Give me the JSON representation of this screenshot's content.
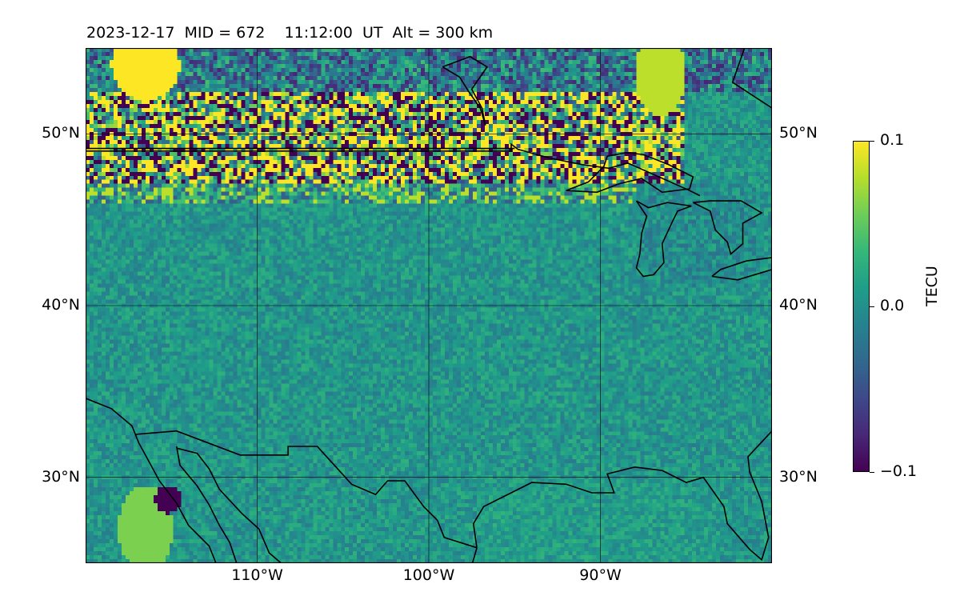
{
  "title": "2023-12-17  MID = 672    11:12:00  UT  Alt = 300 km",
  "map": {
    "lon_range": [
      -120,
      -80
    ],
    "lat_range": [
      25,
      55
    ],
    "lon_ticks": [
      {
        "value": -110,
        "label": "110°W"
      },
      {
        "value": -100,
        "label": "100°W"
      },
      {
        "value": -90,
        "label": "90°W"
      }
    ],
    "lat_ticks": [
      {
        "value": 50,
        "label": "50°N"
      },
      {
        "value": 40,
        "label": "40°N"
      },
      {
        "value": 30,
        "label": "30°N"
      }
    ],
    "gridlines": true,
    "coastlines": true,
    "borders": true
  },
  "colorbar": {
    "label": "TECU",
    "range": [
      -0.1,
      0.1
    ],
    "ticks": [
      {
        "value": 0.1,
        "label": "0.1"
      },
      {
        "value": 0.0,
        "label": "0.0"
      },
      {
        "value": -0.1,
        "label": "−0.1"
      }
    ],
    "colormap": "viridis"
  },
  "chart_data": {
    "type": "heatmap",
    "title": "2023-12-17  MID = 672    11:12:00  UT  Alt = 300 km",
    "x_axis": "longitude",
    "y_axis": "latitude",
    "xlim": [
      -120,
      -80
    ],
    "ylim": [
      25,
      55
    ],
    "value_label": "TECU",
    "value_range": [
      -0.1,
      0.1
    ],
    "regions": [
      {
        "description_lat_range": [
          46,
          52
        ],
        "lon_range": [
          -120,
          -86
        ],
        "character": "strong mixed positive/negative perturbations along the US-Canada border"
      },
      {
        "description_lat_range": [
          25,
          46
        ],
        "lon_range": [
          -120,
          -80
        ],
        "character": "near-zero background, weak positive noise"
      },
      {
        "description_lat_range": [
          52,
          55
        ],
        "lon_range": [
          -118,
          -115
        ],
        "character": "strong positive"
      },
      {
        "description_lat_range": [
          51,
          55
        ],
        "lon_range": [
          -88,
          -85
        ],
        "character": "strong positive"
      },
      {
        "description_lat_range": [
          25,
          30
        ],
        "lon_range": [
          -118,
          -115
        ],
        "character": "positive"
      },
      {
        "description_lat_range": [
          28,
          30
        ],
        "lon_range": [
          -116,
          -114
        ],
        "character": "strong negative"
      }
    ]
  }
}
